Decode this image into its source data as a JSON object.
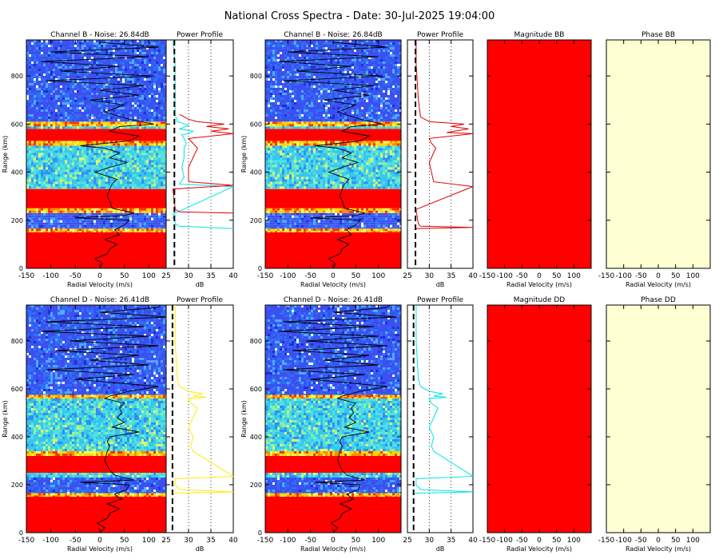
{
  "figure": {
    "title": "National Cross Spectra - Date: 30-Jul-2025 19:04:00"
  },
  "chart_data": [
    {
      "id": "spec_B_1",
      "type": "heatmap",
      "title": "Channel B - Noise: 26.84dB",
      "xlabel": "Radial Velocity (m/s)",
      "ylabel": "Range (km)",
      "xlim": [
        -150,
        150
      ],
      "ylim": [
        0,
        950
      ],
      "xticks": [
        "-150",
        "-100",
        "-50",
        "0",
        "50",
        "100"
      ],
      "yticks": [
        "0",
        "200",
        "400",
        "600",
        "800"
      ],
      "bands": [
        {
          "from": 0,
          "to": 150,
          "level": "high"
        },
        {
          "from": 150,
          "to": 165,
          "level": "medium"
        },
        {
          "from": 165,
          "to": 230,
          "level": "noise"
        },
        {
          "from": 230,
          "to": 250,
          "level": "medium"
        },
        {
          "from": 250,
          "to": 330,
          "level": "high"
        },
        {
          "from": 330,
          "to": 510,
          "level": "low"
        },
        {
          "from": 510,
          "to": 530,
          "level": "medium"
        },
        {
          "from": 530,
          "to": 580,
          "level": "high"
        },
        {
          "from": 580,
          "to": 590,
          "level": "low"
        },
        {
          "from": 590,
          "to": 610,
          "level": "medium"
        },
        {
          "from": 610,
          "to": 950,
          "level": "noise"
        }
      ],
      "doppler_trace": {
        "range": [
          0,
          20,
          40,
          60,
          80,
          100,
          120,
          140,
          160,
          180,
          200,
          210,
          220,
          230,
          250,
          280,
          300,
          330,
          350,
          370,
          380,
          400,
          420,
          440,
          460,
          480,
          500,
          510,
          530,
          550,
          570,
          590,
          600,
          620,
          650,
          680,
          700,
          720,
          740,
          760,
          780,
          800,
          820,
          840,
          860,
          880,
          900,
          920,
          940
        ],
        "velocity": [
          0,
          5,
          -10,
          15,
          20,
          35,
          10,
          40,
          30,
          50,
          60,
          -50,
          50,
          70,
          25,
          20,
          15,
          20,
          25,
          35,
          20,
          -10,
          20,
          55,
          20,
          40,
          10,
          -40,
          60,
          80,
          20,
          40,
          110,
          60,
          10,
          50,
          -20,
          80,
          0,
          90,
          -110,
          110,
          -80,
          40,
          -120,
          100,
          -100,
          120,
          0
        ]
      }
    },
    {
      "id": "prof_B_1",
      "type": "line",
      "title": "Power Profile",
      "xlabel": "dB",
      "xlim": [
        25,
        40
      ],
      "ylim": [
        0,
        950
      ],
      "xticks": [
        "25",
        "30",
        "35",
        "40"
      ],
      "noise_level_db": 26.84,
      "series": [
        {
          "color": "#00e5e5",
          "x": [
            40,
            28,
            27,
            27,
            26.5,
            27,
            26.5,
            40,
            28,
            29,
            28.5,
            29,
            29,
            29.5,
            29,
            28.5,
            30,
            30.5,
            31,
            28,
            30,
            27.5,
            27,
            27,
            27,
            26.5
          ],
          "y": [
            165,
            175,
            185,
            200,
            210,
            220,
            225,
            340,
            350,
            380,
            420,
            460,
            500,
            520,
            540,
            555,
            560,
            565,
            570,
            580,
            595,
            610,
            640,
            700,
            850,
            950
          ]
        },
        {
          "color": "#e00000",
          "x": [
            40,
            28,
            27,
            27,
            26.5,
            40,
            30,
            30,
            31,
            32,
            31,
            30,
            40,
            35,
            39,
            34,
            38,
            32,
            30,
            28
          ],
          "y": [
            230,
            235,
            245,
            250,
            330,
            345,
            360,
            420,
            460,
            500,
            520,
            540,
            560,
            570,
            580,
            590,
            600,
            610,
            620,
            640
          ]
        }
      ]
    },
    {
      "id": "spec_B_2",
      "type": "heatmap",
      "title": "Channel B - Noise: 26.84dB",
      "xlabel": "Radial Velocity (m/s)",
      "ylabel": "Range (km)",
      "xlim": [
        -150,
        150
      ],
      "ylim": [
        0,
        950
      ],
      "xticks": [
        "-150",
        "-100",
        "-50",
        "0",
        "50",
        "100"
      ],
      "yticks": [
        "0",
        "200",
        "400",
        "600",
        "800"
      ],
      "same_as": "spec_B_1"
    },
    {
      "id": "prof_B_2",
      "type": "line",
      "title": "Power Profile",
      "xlabel": "dB",
      "xlim": [
        25,
        40
      ],
      "ylim": [
        0,
        950
      ],
      "xticks": [
        "25",
        "30",
        "35",
        "40"
      ],
      "noise_level_db": 26.84,
      "series": [
        {
          "color": "#e00000",
          "x": [
            27,
            27,
            40,
            28,
            27.5,
            27,
            27,
            40,
            31,
            30.5,
            30,
            31,
            31.5,
            30.5,
            30,
            40,
            34,
            39,
            35,
            38,
            30,
            28,
            27.5,
            27,
            27
          ],
          "y": [
            160,
            165,
            170,
            175,
            185,
            240,
            245,
            340,
            360,
            400,
            440,
            480,
            500,
            520,
            540,
            560,
            565,
            580,
            590,
            600,
            610,
            630,
            700,
            850,
            950
          ]
        }
      ]
    },
    {
      "id": "mag_BB",
      "type": "heatmap",
      "title": "Magnitude BB",
      "xlabel": "Radial Velocity (m/s)",
      "xlim": [
        -150,
        150
      ],
      "ylim": [
        0,
        950
      ],
      "xticks": [
        "-150",
        "-100",
        "-50",
        "0",
        "50",
        "100"
      ],
      "fill_color": "#ff0000"
    },
    {
      "id": "phase_BB",
      "type": "heatmap",
      "title": "Phase BB",
      "xlabel": "Radial Velocity (m/s)",
      "xlim": [
        -150,
        150
      ],
      "ylim": [
        0,
        950
      ],
      "xticks": [
        "-150",
        "-100",
        "-50",
        "0",
        "50",
        "100"
      ],
      "fill_color": "#ffffd4"
    },
    {
      "id": "spec_D_1",
      "type": "heatmap",
      "title": "Channel D - Noise: 26.41dB",
      "xlabel": "Radial Velocity (m/s)",
      "ylabel": "Range (km)",
      "xlim": [
        -150,
        150
      ],
      "ylim": [
        0,
        950
      ],
      "xticks": [
        "-150",
        "-100",
        "-50",
        "0",
        "50",
        "100"
      ],
      "yticks": [
        "0",
        "200",
        "400",
        "600",
        "800"
      ],
      "bands": [
        {
          "from": 0,
          "to": 150,
          "level": "high"
        },
        {
          "from": 150,
          "to": 165,
          "level": "medium"
        },
        {
          "from": 165,
          "to": 230,
          "level": "noise"
        },
        {
          "from": 230,
          "to": 250,
          "level": "low"
        },
        {
          "from": 250,
          "to": 320,
          "level": "high"
        },
        {
          "from": 320,
          "to": 340,
          "level": "medium"
        },
        {
          "from": 340,
          "to": 560,
          "level": "low"
        },
        {
          "from": 560,
          "to": 575,
          "level": "medium"
        },
        {
          "from": 575,
          "to": 950,
          "level": "noise"
        }
      ],
      "doppler_trace": {
        "range": [
          0,
          20,
          40,
          60,
          80,
          100,
          120,
          140,
          160,
          180,
          200,
          210,
          220,
          240,
          260,
          300,
          340,
          360,
          380,
          400,
          420,
          440,
          460,
          480,
          500,
          520,
          540,
          560,
          570,
          590,
          610,
          640,
          660,
          680,
          700,
          720,
          740,
          760,
          780,
          800,
          820,
          840,
          860,
          880,
          900,
          920,
          940
        ],
        "velocity": [
          0,
          10,
          -5,
          15,
          20,
          40,
          15,
          45,
          30,
          55,
          60,
          -40,
          70,
          30,
          20,
          10,
          15,
          20,
          15,
          20,
          80,
          25,
          50,
          35,
          45,
          40,
          50,
          10,
          20,
          60,
          120,
          -50,
          70,
          -110,
          100,
          -20,
          80,
          -90,
          120,
          -60,
          100,
          -120,
          90,
          -110,
          140,
          0,
          120
        ]
      }
    },
    {
      "id": "prof_D_1",
      "type": "line",
      "title": "Power Profile",
      "xlabel": "dB",
      "xlim": [
        25,
        40
      ],
      "ylim": [
        0,
        950
      ],
      "xticks": [
        "25",
        "30",
        "35",
        "40"
      ],
      "noise_level_db": 26.41,
      "series": [
        {
          "color": "#ffee00",
          "x": [
            26.5,
            27,
            40,
            28,
            27,
            27,
            40,
            31,
            30.5,
            31,
            30,
            31,
            32,
            30.5,
            30,
            34,
            31,
            33,
            30,
            28,
            27.5,
            27,
            27
          ],
          "y": [
            160,
            165,
            170,
            180,
            200,
            225,
            235,
            340,
            360,
            400,
            440,
            480,
            520,
            540,
            560,
            565,
            570,
            580,
            590,
            610,
            640,
            800,
            950
          ]
        }
      ]
    },
    {
      "id": "spec_D_2",
      "type": "heatmap",
      "title": "Channel D - Noise: 26.41dB",
      "xlabel": "Radial Velocity (m/s)",
      "ylabel": "Range (km)",
      "xlim": [
        -150,
        150
      ],
      "ylim": [
        0,
        950
      ],
      "xticks": [
        "-150",
        "-100",
        "-50",
        "0",
        "50",
        "100"
      ],
      "yticks": [
        "0",
        "200",
        "400",
        "600",
        "800"
      ],
      "same_as": "spec_D_1"
    },
    {
      "id": "prof_D_2",
      "type": "line",
      "title": "Power Profile",
      "xlabel": "dB",
      "xlim": [
        25,
        40
      ],
      "ylim": [
        0,
        950
      ],
      "xticks": [
        "25",
        "30",
        "35",
        "40"
      ],
      "noise_level_db": 26.41,
      "series": [
        {
          "color": "#00e5e5",
          "x": [
            26.5,
            27,
            40,
            28,
            27,
            27,
            40,
            31,
            30.5,
            31,
            30,
            31,
            32,
            30.5,
            30,
            34,
            31,
            33,
            30,
            28,
            27.5,
            27,
            27
          ],
          "y": [
            160,
            165,
            170,
            180,
            200,
            225,
            235,
            340,
            360,
            400,
            440,
            480,
            520,
            540,
            560,
            565,
            570,
            580,
            590,
            610,
            640,
            800,
            950
          ]
        }
      ]
    },
    {
      "id": "mag_DD",
      "type": "heatmap",
      "title": "Magnitude DD",
      "xlabel": "Radial Velocity (m/s)",
      "xlim": [
        -150,
        150
      ],
      "ylim": [
        0,
        950
      ],
      "xticks": [
        "-150",
        "-100",
        "-50",
        "0",
        "50",
        "100"
      ],
      "fill_color": "#ff0000"
    },
    {
      "id": "phase_DD",
      "type": "heatmap",
      "title": "Phase DD",
      "xlabel": "Radial Velocity (m/s)",
      "xlim": [
        -150,
        150
      ],
      "ylim": [
        0,
        950
      ],
      "xticks": [
        "-150",
        "-100",
        "-50",
        "0",
        "50",
        "100"
      ],
      "fill_color": "#ffffd4"
    }
  ]
}
